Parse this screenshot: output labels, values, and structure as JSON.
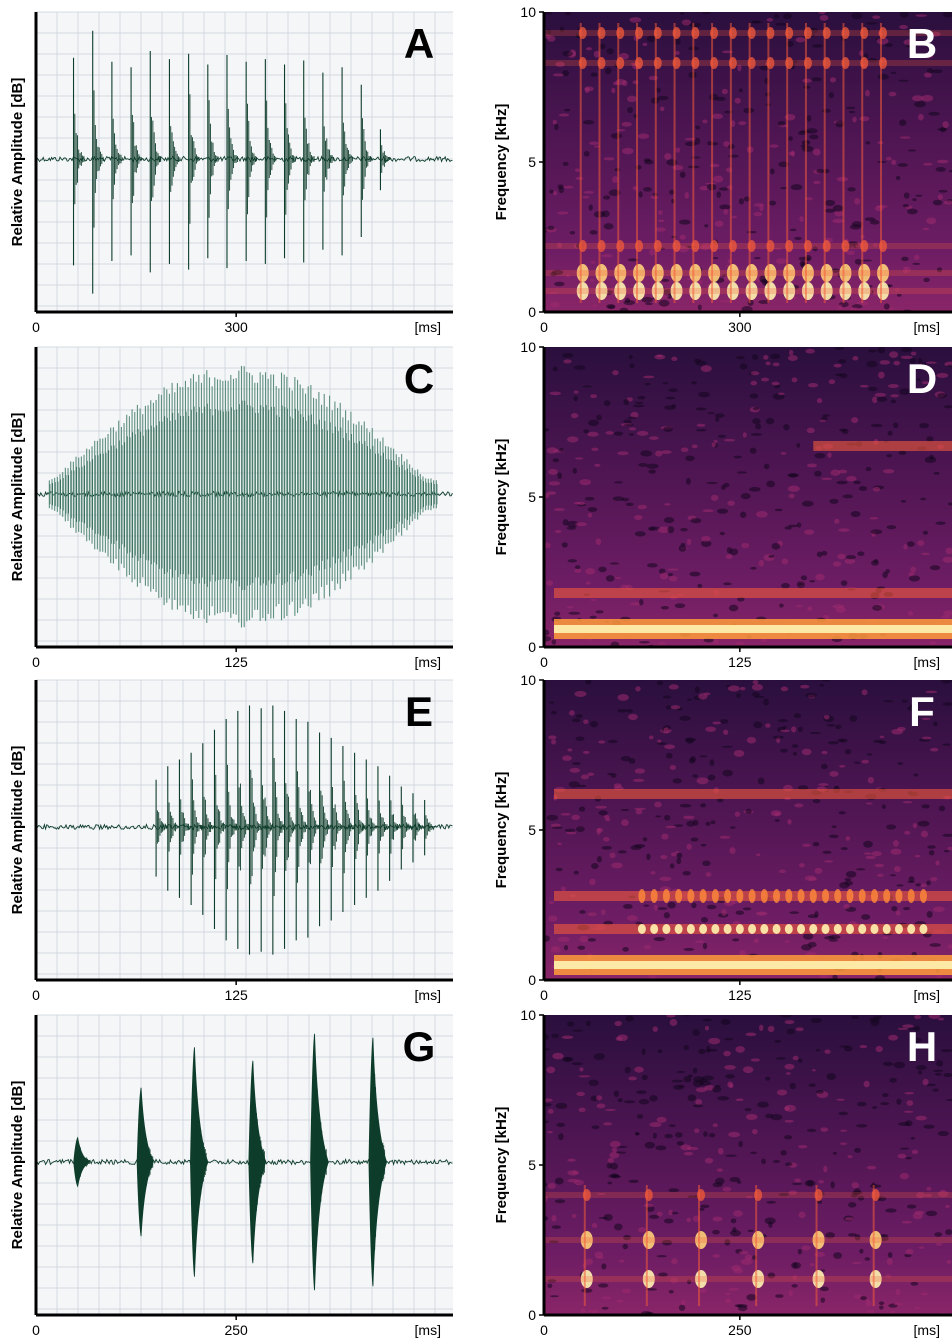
{
  "panels": [
    {
      "label": "A",
      "ylabel": "Relative Amplitude [dB]",
      "xticks": [
        "0",
        "300"
      ],
      "xunit": "[ms]"
    },
    {
      "label": "B",
      "ylabel": "Frequency [kHz]",
      "yticks": [
        "0",
        "5",
        "10"
      ],
      "xticks": [
        "0",
        "300"
      ],
      "xunit": "[ms]"
    },
    {
      "label": "C",
      "ylabel": "Relative Amplitude [dB]",
      "xticks": [
        "0",
        "125"
      ],
      "xunit": "[ms]"
    },
    {
      "label": "D",
      "ylabel": "Frequency [kHz]",
      "yticks": [
        "0",
        "5",
        "10"
      ],
      "xticks": [
        "0",
        "125"
      ],
      "xunit": "[ms]"
    },
    {
      "label": "E",
      "ylabel": "Relative Amplitude [dB]",
      "xticks": [
        "0",
        "125"
      ],
      "xunit": "[ms]"
    },
    {
      "label": "F",
      "ylabel": "Frequency [kHz]",
      "yticks": [
        "0",
        "5",
        "10"
      ],
      "xticks": [
        "0",
        "125"
      ],
      "xunit": "[ms]"
    },
    {
      "label": "G",
      "ylabel": "Relative Amplitude [dB]",
      "xticks": [
        "0",
        "250"
      ],
      "xunit": "[ms]"
    },
    {
      "label": "H",
      "ylabel": "Frequency [kHz]",
      "yticks": [
        "0",
        "5",
        "10"
      ],
      "xticks": [
        "0",
        "250"
      ],
      "xunit": "[ms]"
    }
  ],
  "colors": {
    "waveform": "#0f3d2b",
    "waveform_light": "#5f8f7e",
    "grid": "#c9d2da",
    "axis": "#000000",
    "spectrogram_low": "#1a0a2e",
    "spectrogram_mid": "#7a1e6e",
    "spectrogram_high": "#f25a3a",
    "spectrogram_peak": "#fff3b0"
  },
  "chart_data": [
    {
      "type": "line",
      "panel": "A",
      "xlabel": "[ms]",
      "ylabel": "Relative Amplitude [dB]",
      "xlim": [
        0,
        500
      ],
      "pulses_ms": [
        45,
        68,
        91,
        114,
        137,
        160,
        183,
        206,
        229,
        252,
        275,
        298,
        321,
        344,
        367,
        390,
        413
      ],
      "pulse_amplitude": [
        0.75,
        0.95,
        0.72,
        0.68,
        0.8,
        0.74,
        0.78,
        0.7,
        0.77,
        0.72,
        0.74,
        0.7,
        0.73,
        0.64,
        0.68,
        0.55,
        0.22
      ]
    },
    {
      "type": "heatmap",
      "panel": "B",
      "xlabel": "[ms]",
      "ylabel": "Frequency [kHz]",
      "xlim": [
        0,
        500
      ],
      "ylim": [
        0,
        10
      ],
      "pulses_ms": [
        45,
        68,
        91,
        114,
        137,
        160,
        183,
        206,
        229,
        252,
        275,
        298,
        321,
        344,
        367,
        390,
        413
      ],
      "bands_khz": [
        0.7,
        1.3,
        2.2,
        8.3,
        9.3
      ]
    },
    {
      "type": "line",
      "panel": "C",
      "xlabel": "[ms]",
      "ylabel": "Relative Amplitude [dB]",
      "xlim": [
        0,
        250
      ],
      "envelope": "spindle",
      "peak_time_ms": 125
    },
    {
      "type": "heatmap",
      "panel": "D",
      "xlabel": "[ms]",
      "ylabel": "Frequency [kHz]",
      "xlim": [
        0,
        250
      ],
      "ylim": [
        0,
        10
      ],
      "bands_khz": [
        0.6,
        1.8,
        6.7
      ]
    },
    {
      "type": "line",
      "panel": "E",
      "xlabel": "[ms]",
      "ylabel": "Relative Amplitude [dB]",
      "xlim": [
        0,
        250
      ],
      "pulses_ms": [
        72,
        79,
        86,
        93,
        100,
        107,
        114,
        121,
        128,
        135,
        142,
        149,
        156,
        163,
        170,
        177,
        184,
        191,
        198,
        205,
        212,
        219,
        226,
        233
      ],
      "pulse_amplitude": [
        0.35,
        0.45,
        0.5,
        0.55,
        0.62,
        0.72,
        0.8,
        0.86,
        0.9,
        0.88,
        0.9,
        0.86,
        0.8,
        0.78,
        0.7,
        0.66,
        0.6,
        0.55,
        0.5,
        0.45,
        0.38,
        0.3,
        0.25,
        0.2
      ]
    },
    {
      "type": "heatmap",
      "panel": "F",
      "xlabel": "[ms]",
      "ylabel": "Frequency [kHz]",
      "xlim": [
        0,
        250
      ],
      "ylim": [
        0,
        10
      ],
      "bands_khz": [
        0.5,
        1.7,
        2.8,
        6.2
      ]
    },
    {
      "type": "line",
      "panel": "G",
      "xlabel": "[ms]",
      "ylabel": "Relative Amplitude [dB]",
      "xlim": [
        0,
        500
      ],
      "pulses_ms": [
        50,
        126,
        190,
        260,
        334,
        404
      ],
      "pulse_amplitude": [
        0.18,
        0.55,
        0.85,
        0.75,
        0.95,
        0.92
      ]
    },
    {
      "type": "heatmap",
      "panel": "H",
      "xlabel": "[ms]",
      "ylabel": "Frequency [kHz]",
      "xlim": [
        0,
        500
      ],
      "ylim": [
        0,
        10
      ],
      "pulses_ms": [
        50,
        126,
        190,
        260,
        334,
        404
      ],
      "bands_khz": [
        1.2,
        2.5,
        4.0
      ]
    }
  ]
}
